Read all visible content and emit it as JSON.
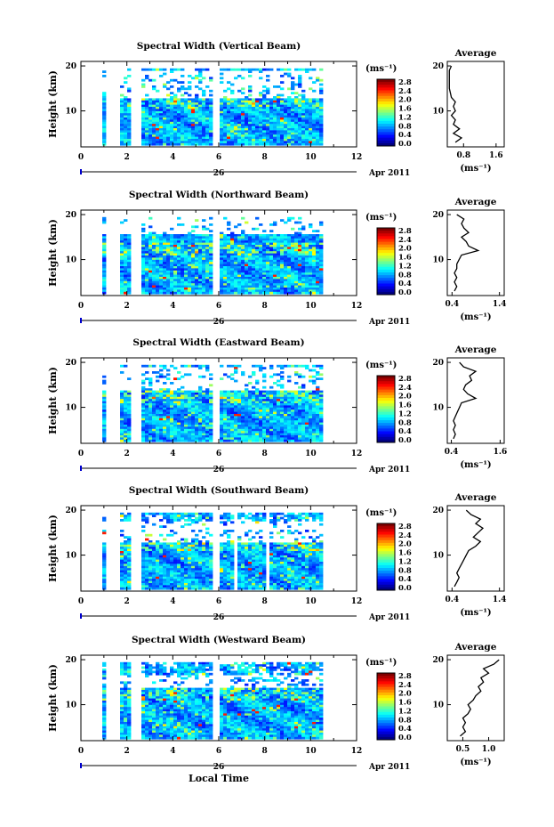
{
  "chart_data": [
    {
      "type": "heatmap",
      "title": "Spectral Width (Vertical Beam)",
      "ylabel": "Height (km)",
      "xlim": [
        0,
        12
      ],
      "ylim": [
        2,
        21
      ],
      "xticks": [
        "0",
        "2",
        "4",
        "6",
        "8",
        "10",
        "12"
      ],
      "yticks": [
        "20",
        "10"
      ],
      "date_label": "26",
      "month_label": "Apr 2011",
      "colorbar": {
        "unit": "(ms⁻¹)",
        "ticks": [
          "2.8",
          "2.4",
          "2.0",
          "1.6",
          "1.2",
          "0.8",
          "0.4",
          "0.0"
        ]
      },
      "average": {
        "title": "Average",
        "unit": "(ms⁻¹)",
        "xticks": [
          "0.8",
          "1.6"
        ],
        "xlim": [
          0.4,
          1.8
        ],
        "yticks": [
          "20",
          "10"
        ],
        "profile": [
          [
            0.6,
            3
          ],
          [
            0.75,
            4
          ],
          [
            0.55,
            5
          ],
          [
            0.7,
            6
          ],
          [
            0.55,
            7
          ],
          [
            0.6,
            8
          ],
          [
            0.5,
            9
          ],
          [
            0.6,
            10
          ],
          [
            0.55,
            11
          ],
          [
            0.6,
            12
          ],
          [
            0.5,
            13
          ],
          [
            0.45,
            15
          ],
          [
            0.45,
            17
          ],
          [
            0.45,
            19
          ],
          [
            0.5,
            20
          ]
        ]
      },
      "gaps": [
        [
          0.55,
          0.75
        ],
        [
          1.1,
          1.7
        ],
        [
          2.2,
          2.6
        ],
        [
          5.75,
          6.0
        ]
      ],
      "end": 10.4,
      "top_white_band": [
        13,
        19
      ]
    },
    {
      "type": "heatmap",
      "title": "Spectral Width (Northward Beam)",
      "ylabel": "Height (km)",
      "xlim": [
        0,
        12
      ],
      "ylim": [
        2,
        21
      ],
      "xticks": [
        "0",
        "2",
        "4",
        "6",
        "8",
        "10",
        "12"
      ],
      "yticks": [
        "20",
        "10"
      ],
      "date_label": "26",
      "month_label": "Apr 2011",
      "colorbar": {
        "unit": "(ms⁻¹)",
        "ticks": [
          "2.8",
          "2.4",
          "2.0",
          "1.6",
          "1.2",
          "0.8",
          "0.4",
          "0.0"
        ]
      },
      "average": {
        "title": "Average",
        "unit": "(ms⁻¹)",
        "xticks": [
          "0.4",
          "1.4"
        ],
        "xlim": [
          0.3,
          1.5
        ],
        "yticks": [
          "20",
          "10"
        ],
        "profile": [
          [
            0.45,
            3
          ],
          [
            0.5,
            4
          ],
          [
            0.45,
            5
          ],
          [
            0.5,
            6
          ],
          [
            0.45,
            7
          ],
          [
            0.5,
            8
          ],
          [
            0.5,
            9
          ],
          [
            0.55,
            10
          ],
          [
            0.6,
            11
          ],
          [
            0.95,
            12
          ],
          [
            0.75,
            13
          ],
          [
            0.7,
            14
          ],
          [
            0.6,
            15
          ],
          [
            0.75,
            16
          ],
          [
            0.65,
            17
          ],
          [
            0.6,
            18
          ],
          [
            0.65,
            19
          ],
          [
            0.5,
            20
          ]
        ]
      },
      "gaps": [
        [
          0.55,
          0.75
        ],
        [
          1.1,
          1.7
        ],
        [
          2.2,
          2.6
        ],
        [
          5.75,
          6.0
        ]
      ],
      "end": 10.4,
      "top_white_band": [
        16,
        20
      ]
    },
    {
      "type": "heatmap",
      "title": "Spectral Width (Eastward Beam)",
      "ylabel": "Height (km)",
      "xlim": [
        0,
        12
      ],
      "ylim": [
        2,
        21
      ],
      "xticks": [
        "0",
        "2",
        "4",
        "6",
        "8",
        "10",
        "12"
      ],
      "yticks": [
        "20",
        "10"
      ],
      "date_label": "26",
      "month_label": "Apr 2011",
      "colorbar": {
        "unit": "(ms⁻¹)",
        "ticks": [
          "2.8",
          "2.4",
          "2.0",
          "1.6",
          "1.2",
          "0.8",
          "0.4",
          "0.0"
        ]
      },
      "average": {
        "title": "Average",
        "unit": "(ms⁻¹)",
        "xticks": [
          "0.4",
          "1.6"
        ],
        "xlim": [
          0.3,
          1.7
        ],
        "yticks": [
          "20",
          "10"
        ],
        "profile": [
          [
            0.45,
            3
          ],
          [
            0.5,
            4
          ],
          [
            0.45,
            5
          ],
          [
            0.5,
            6
          ],
          [
            0.45,
            7
          ],
          [
            0.5,
            8
          ],
          [
            0.55,
            9
          ],
          [
            0.6,
            10
          ],
          [
            0.65,
            11
          ],
          [
            1.0,
            12
          ],
          [
            0.8,
            13
          ],
          [
            0.7,
            14
          ],
          [
            0.75,
            15
          ],
          [
            0.9,
            16
          ],
          [
            0.85,
            17
          ],
          [
            1.0,
            18
          ],
          [
            0.7,
            19
          ],
          [
            0.6,
            20
          ]
        ]
      },
      "gaps": [
        [
          0.55,
          0.75
        ],
        [
          1.1,
          1.7
        ],
        [
          2.2,
          2.6
        ],
        [
          5.5,
          5.6
        ],
        [
          5.75,
          6.0
        ]
      ],
      "end": 10.4,
      "top_white_band": [
        14,
        19
      ]
    },
    {
      "type": "heatmap",
      "title": "Spectral Width (Southward Beam)",
      "ylabel": "Height (km)",
      "xlim": [
        0,
        12
      ],
      "ylim": [
        2,
        21
      ],
      "xticks": [
        "0",
        "2",
        "4",
        "6",
        "8",
        "10",
        "12"
      ],
      "yticks": [
        "20",
        "10"
      ],
      "date_label": "26",
      "month_label": "Apr 2011",
      "colorbar": {
        "unit": "(ms⁻¹)",
        "ticks": [
          "2.8",
          "2.4",
          "2.0",
          "1.6",
          "1.2",
          "0.8",
          "0.4",
          "0.0"
        ]
      },
      "average": {
        "title": "Average",
        "unit": "(ms⁻¹)",
        "xticks": [
          "0.4",
          "1.4"
        ],
        "xlim": [
          0.3,
          1.5
        ],
        "yticks": [
          "20",
          "10"
        ],
        "profile": [
          [
            0.45,
            3
          ],
          [
            0.5,
            4
          ],
          [
            0.55,
            5
          ],
          [
            0.5,
            6
          ],
          [
            0.55,
            7
          ],
          [
            0.6,
            8
          ],
          [
            0.65,
            9
          ],
          [
            0.7,
            10
          ],
          [
            0.75,
            11
          ],
          [
            0.9,
            12
          ],
          [
            1.0,
            13
          ],
          [
            0.85,
            14
          ],
          [
            0.95,
            15
          ],
          [
            1.05,
            16
          ],
          [
            0.9,
            17
          ],
          [
            1.0,
            18
          ],
          [
            0.8,
            19
          ],
          [
            0.7,
            20
          ]
        ]
      },
      "gaps": [
        [
          0.55,
          0.75
        ],
        [
          1.1,
          1.7
        ],
        [
          2.2,
          2.6
        ],
        [
          5.75,
          6.0
        ],
        [
          6.7,
          6.8
        ],
        [
          8.0,
          8.2
        ]
      ],
      "end": 10.4,
      "top_white_band": [
        13,
        18
      ]
    },
    {
      "type": "heatmap",
      "title": "Spectral Width (Westward Beam)",
      "ylabel": "Height (km)",
      "xlabel": "Local Time",
      "xlim": [
        0,
        12
      ],
      "ylim": [
        2,
        21
      ],
      "xticks": [
        "0",
        "2",
        "4",
        "6",
        "8",
        "10",
        "12"
      ],
      "yticks": [
        "20",
        "10"
      ],
      "date_label": "26",
      "month_label": "Apr 2011",
      "colorbar": {
        "unit": "(ms⁻¹)",
        "ticks": [
          "2.8",
          "2.4",
          "2.0",
          "1.6",
          "1.2",
          "0.8",
          "0.4",
          "0.0"
        ]
      },
      "average": {
        "title": "Average",
        "unit": "(ms⁻¹)",
        "xticks": [
          "0.5",
          "1.0"
        ],
        "xlim": [
          0.2,
          1.3
        ],
        "yticks": [
          "20",
          "10"
        ],
        "profile": [
          [
            0.45,
            3
          ],
          [
            0.55,
            4
          ],
          [
            0.5,
            5
          ],
          [
            0.55,
            6
          ],
          [
            0.5,
            7
          ],
          [
            0.6,
            8
          ],
          [
            0.65,
            9
          ],
          [
            0.6,
            10
          ],
          [
            0.7,
            11
          ],
          [
            0.75,
            12
          ],
          [
            0.85,
            13
          ],
          [
            0.8,
            14
          ],
          [
            0.9,
            15
          ],
          [
            0.85,
            16
          ],
          [
            1.0,
            17
          ],
          [
            0.9,
            18
          ],
          [
            1.1,
            19
          ],
          [
            1.2,
            20
          ]
        ]
      },
      "gaps": [
        [
          0.55,
          0.75
        ],
        [
          1.1,
          1.7
        ],
        [
          2.2,
          2.6
        ],
        [
          5.75,
          6.0
        ]
      ],
      "end": 10.4,
      "top_white_band": [
        14,
        17
      ]
    }
  ]
}
